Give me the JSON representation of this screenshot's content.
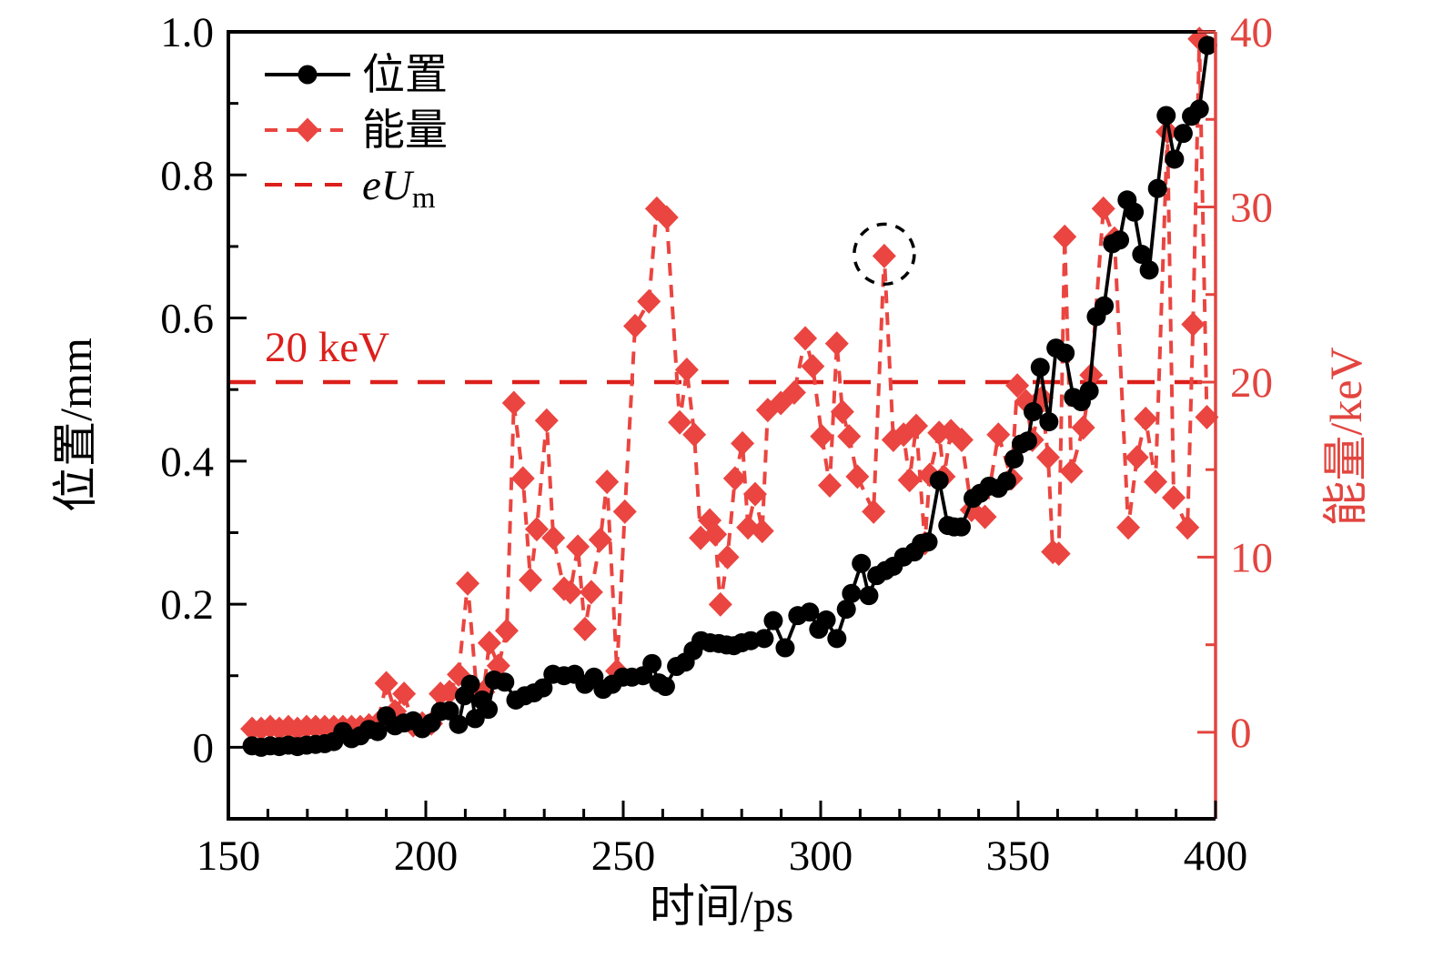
{
  "chart_data": {
    "type": "line",
    "title": "",
    "xlabel": "时间/ps",
    "ylabel_left": "位置/mm",
    "ylabel_right": "能量/keV",
    "x_ticks": [
      "150",
      "200",
      "250",
      "300",
      "350",
      "400"
    ],
    "y_left_ticks": [
      "0",
      "0.2",
      "0.4",
      "0.6",
      "0.8",
      "1.0"
    ],
    "y_right_ticks": [
      "0",
      "10",
      "20",
      "30",
      "40"
    ],
    "axis_ranges": {
      "x": [
        150,
        400
      ],
      "x_minor_step": 10,
      "y_left": [
        -0.1,
        1.0
      ],
      "y_left_minor_step": 0.1,
      "y_right": [
        -4.94,
        40
      ],
      "y_right_minor_step": 5
    },
    "grid": "off",
    "legend_position": "upper-left",
    "colors": {
      "position": "#000000",
      "energy": "#ea4540",
      "eum": "#dc1f1b",
      "right_axis": "#e2453f",
      "background": "#ffffff"
    },
    "legend": [
      {
        "label": "位置",
        "series": "position"
      },
      {
        "label": "能量",
        "series": "energy"
      },
      {
        "label": "eU",
        "sub": "m",
        "series": "eum"
      }
    ],
    "eum_line": {
      "value_keV": 20,
      "label": "20 keV"
    },
    "annotation_circle": {
      "series": "energy",
      "t_ps": 316.1,
      "value_keV": 27.2
    },
    "series": [
      {
        "name": "位置",
        "axis": "left",
        "marker": "circle",
        "line": "solid",
        "points": [
          [
            156,
            0.002
          ],
          [
            158.3,
            0.0
          ],
          [
            160.6,
            0.002
          ],
          [
            162.9,
            0.001
          ],
          [
            165.2,
            0.003
          ],
          [
            167.5,
            0.001
          ],
          [
            169.8,
            0.003
          ],
          [
            172.1,
            0.004
          ],
          [
            174.4,
            0.005
          ],
          [
            176.7,
            0.008
          ],
          [
            179,
            0.022
          ],
          [
            181.2,
            0.012
          ],
          [
            183.4,
            0.016
          ],
          [
            185.6,
            0.025
          ],
          [
            187.8,
            0.022
          ],
          [
            190,
            0.044
          ],
          [
            192.2,
            0.03
          ],
          [
            194.5,
            0.034
          ],
          [
            196.8,
            0.037
          ],
          [
            199.1,
            0.026
          ],
          [
            201.4,
            0.034
          ],
          [
            203.7,
            0.05
          ],
          [
            206,
            0.051
          ],
          [
            208.3,
            0.032
          ],
          [
            209.8,
            0.072
          ],
          [
            211.3,
            0.088
          ],
          [
            212.5,
            0.04
          ],
          [
            214.3,
            0.066
          ],
          [
            215.8,
            0.053
          ],
          [
            217.3,
            0.094
          ],
          [
            220,
            0.091
          ],
          [
            222.8,
            0.066
          ],
          [
            225.1,
            0.072
          ],
          [
            227.4,
            0.076
          ],
          [
            229.7,
            0.083
          ],
          [
            232.2,
            0.102
          ],
          [
            235,
            0.1
          ],
          [
            237.7,
            0.102
          ],
          [
            240.3,
            0.088
          ],
          [
            242.6,
            0.098
          ],
          [
            244.9,
            0.081
          ],
          [
            247.2,
            0.088
          ],
          [
            249.9,
            0.098
          ],
          [
            252.2,
            0.098
          ],
          [
            255,
            0.1
          ],
          [
            257.3,
            0.117
          ],
          [
            259,
            0.09
          ],
          [
            260.7,
            0.085
          ],
          [
            263.5,
            0.113
          ],
          [
            265.7,
            0.119
          ],
          [
            267.7,
            0.135
          ],
          [
            269.7,
            0.149
          ],
          [
            272,
            0.146
          ],
          [
            274.2,
            0.145
          ],
          [
            276.2,
            0.143
          ],
          [
            278,
            0.142
          ],
          [
            280,
            0.146
          ],
          [
            282.3,
            0.149
          ],
          [
            285.7,
            0.152
          ],
          [
            288,
            0.177
          ],
          [
            291,
            0.139
          ],
          [
            294.2,
            0.184
          ],
          [
            297.2,
            0.189
          ],
          [
            299.5,
            0.165
          ],
          [
            301.4,
            0.178
          ],
          [
            304.1,
            0.152
          ],
          [
            306.5,
            0.193
          ],
          [
            307.8,
            0.215
          ],
          [
            310.3,
            0.257
          ],
          [
            312.2,
            0.212
          ],
          [
            314.2,
            0.24
          ],
          [
            316.4,
            0.247
          ],
          [
            318.4,
            0.253
          ],
          [
            321,
            0.266
          ],
          [
            323.7,
            0.273
          ],
          [
            325.5,
            0.285
          ],
          [
            327.2,
            0.287
          ],
          [
            330,
            0.373
          ],
          [
            332.2,
            0.31
          ],
          [
            333.8,
            0.308
          ],
          [
            335.6,
            0.308
          ],
          [
            338.6,
            0.348
          ],
          [
            340.4,
            0.355
          ],
          [
            342.7,
            0.365
          ],
          [
            345,
            0.362
          ],
          [
            347.1,
            0.372
          ],
          [
            349,
            0.403
          ],
          [
            350.8,
            0.424
          ],
          [
            352.4,
            0.428
          ],
          [
            353.8,
            0.469
          ],
          [
            355.6,
            0.531
          ],
          [
            357.8,
            0.455
          ],
          [
            359.6,
            0.558
          ],
          [
            361.9,
            0.551
          ],
          [
            364,
            0.489
          ],
          [
            366,
            0.483
          ],
          [
            368,
            0.498
          ],
          [
            369.8,
            0.602
          ],
          [
            371.8,
            0.617
          ],
          [
            373.9,
            0.704
          ],
          [
            375.7,
            0.709
          ],
          [
            377.6,
            0.765
          ],
          [
            379.4,
            0.748
          ],
          [
            381.3,
            0.689
          ],
          [
            383.2,
            0.667
          ],
          [
            385.3,
            0.781
          ],
          [
            387.5,
            0.883
          ],
          [
            389.6,
            0.822
          ],
          [
            391.8,
            0.858
          ],
          [
            393.9,
            0.882
          ],
          [
            395.9,
            0.892
          ],
          [
            398,
            0.981
          ]
        ]
      },
      {
        "name": "能量",
        "axis": "right",
        "marker": "diamond",
        "line": "dashed",
        "points": [
          [
            156,
            0.2
          ],
          [
            158.3,
            0.2
          ],
          [
            160.6,
            0.3
          ],
          [
            162.9,
            0.2
          ],
          [
            165.2,
            0.3
          ],
          [
            167.5,
            0.2
          ],
          [
            169.8,
            0.3
          ],
          [
            172.1,
            0.3
          ],
          [
            174.4,
            0.3
          ],
          [
            176.7,
            0.3
          ],
          [
            179,
            0.3
          ],
          [
            181.2,
            0.3
          ],
          [
            183.4,
            0.3
          ],
          [
            185.6,
            0.4
          ],
          [
            187.8,
            0.5
          ],
          [
            190,
            2.8
          ],
          [
            192.2,
            1.2
          ],
          [
            194.5,
            2.2
          ],
          [
            196.8,
            0.4
          ],
          [
            199.1,
            0.5
          ],
          [
            201.4,
            0.5
          ],
          [
            203.7,
            2.2
          ],
          [
            206,
            2.3
          ],
          [
            208.3,
            3.3
          ],
          [
            210.6,
            8.5
          ],
          [
            212.9,
            2.3
          ],
          [
            214.6,
            2.3
          ],
          [
            216.1,
            5.1
          ],
          [
            218.4,
            3.8
          ],
          [
            220.5,
            5.8
          ],
          [
            222.3,
            18.8
          ],
          [
            224.6,
            14.5
          ],
          [
            226.5,
            8.7
          ],
          [
            228.1,
            11.6
          ],
          [
            230.6,
            17.8
          ],
          [
            232.3,
            11.1
          ],
          [
            235,
            8.2
          ],
          [
            236.6,
            8.0
          ],
          [
            238.5,
            10.6
          ],
          [
            240.3,
            5.9
          ],
          [
            241.9,
            8.0
          ],
          [
            244.2,
            11.0
          ],
          [
            245.9,
            14.3
          ],
          [
            248.4,
            3.5
          ],
          [
            250.4,
            12.6
          ],
          [
            253,
            23.2
          ],
          [
            256.5,
            24.6
          ],
          [
            258.5,
            29.9
          ],
          [
            261,
            29.4
          ],
          [
            264.3,
            17.7
          ],
          [
            266.1,
            20.7
          ],
          [
            268,
            17.0
          ],
          [
            269.6,
            11.1
          ],
          [
            271.9,
            12.1
          ],
          [
            273.3,
            11.3
          ],
          [
            274.6,
            7.3
          ],
          [
            276.4,
            10.0
          ],
          [
            278.3,
            14.5
          ],
          [
            280.2,
            16.5
          ],
          [
            281.6,
            11.7
          ],
          [
            283.4,
            13.6
          ],
          [
            285.2,
            11.5
          ],
          [
            286.6,
            18.4
          ],
          [
            289.9,
            18.8
          ],
          [
            293.3,
            19.4
          ],
          [
            296.1,
            22.5
          ],
          [
            298,
            20.9
          ],
          [
            300.3,
            16.9
          ],
          [
            302.3,
            14.1
          ],
          [
            304.1,
            22.2
          ],
          [
            305.5,
            18.3
          ],
          [
            307.2,
            16.9
          ],
          [
            309.3,
            14.6
          ],
          [
            313.4,
            12.6
          ],
          [
            316.1,
            27.2
          ],
          [
            318.4,
            16.7
          ],
          [
            321,
            17.0
          ],
          [
            322.5,
            14.4
          ],
          [
            324.2,
            17.5
          ],
          [
            326.4,
            10.8
          ],
          [
            327.6,
            14.7
          ],
          [
            330,
            17.1
          ],
          [
            331.2,
            14.6
          ],
          [
            333,
            17.2
          ],
          [
            335.7,
            16.7
          ],
          [
            338.2,
            12.7
          ],
          [
            341.6,
            12.3
          ],
          [
            345,
            17.0
          ],
          [
            348.3,
            14.5
          ],
          [
            349.8,
            19.8
          ],
          [
            352,
            18.9
          ],
          [
            353.6,
            16.7
          ],
          [
            356,
            19.1
          ],
          [
            357.6,
            15.7
          ],
          [
            358.8,
            10.3
          ],
          [
            360.3,
            10.2
          ],
          [
            361.8,
            28.3
          ],
          [
            363.5,
            14.9
          ],
          [
            366.5,
            17.4
          ],
          [
            368.5,
            20.4
          ],
          [
            371.6,
            29.9
          ],
          [
            374.4,
            28.2
          ],
          [
            377.9,
            11.7
          ],
          [
            380.1,
            15.7
          ],
          [
            382.3,
            17.9
          ],
          [
            384.8,
            14.3
          ],
          [
            387.8,
            34.3
          ],
          [
            389.4,
            13.4
          ],
          [
            392.9,
            11.7
          ],
          [
            394.3,
            23.3
          ],
          [
            395.9,
            39.6
          ],
          [
            397.8,
            18.0
          ]
        ]
      }
    ]
  }
}
